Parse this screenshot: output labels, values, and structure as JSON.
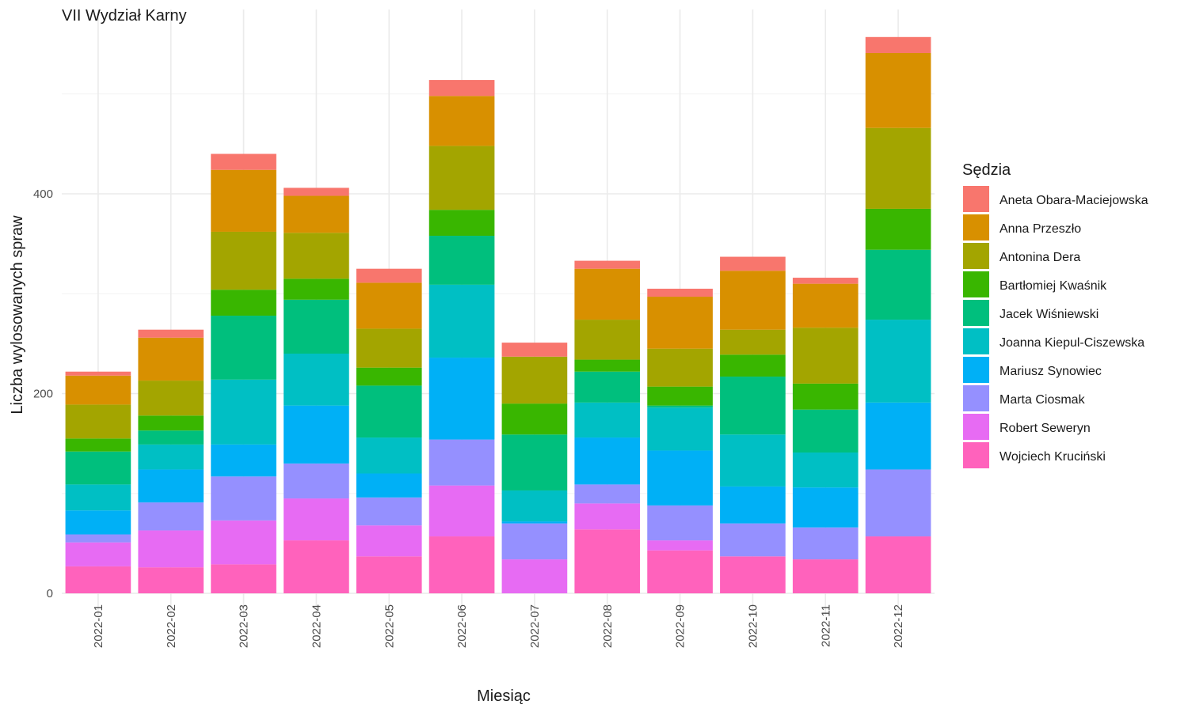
{
  "chart_data": {
    "type": "bar",
    "stacked": true,
    "title": "VII Wydział Karny",
    "xlabel": "Miesiąc",
    "ylabel": "Liczba wylosowanych spraw",
    "legend_title": "Sędzia",
    "legend_position": "right",
    "ylim": [
      0,
      560
    ],
    "y_ticks": [
      0,
      200,
      400
    ],
    "grid": true,
    "categories": [
      "2022-01",
      "2022-02",
      "2022-03",
      "2022-04",
      "2022-05",
      "2022-06",
      "2022-07",
      "2022-08",
      "2022-09",
      "2022-10",
      "2022-11",
      "2022-12"
    ],
    "series": [
      {
        "name": "Aneta Obara-Maciejowska",
        "color": "#F8766D",
        "values": [
          4,
          8,
          16,
          8,
          14,
          16,
          14,
          8,
          8,
          14,
          6,
          16
        ]
      },
      {
        "name": "Anna Przeszło",
        "color": "#D89000",
        "values": [
          29,
          43,
          62,
          37,
          46,
          50,
          0,
          51,
          52,
          59,
          44,
          75
        ]
      },
      {
        "name": "Antonina Dera",
        "color": "#A3A500",
        "values": [
          34,
          35,
          58,
          46,
          39,
          64,
          47,
          40,
          38,
          25,
          56,
          81
        ]
      },
      {
        "name": "Bartłomiej Kwaśnik",
        "color": "#39B600",
        "values": [
          13,
          15,
          26,
          21,
          18,
          26,
          31,
          12,
          19,
          22,
          26,
          41
        ]
      },
      {
        "name": "Jacek Wiśniewski",
        "color": "#00BF7D",
        "values": [
          33,
          14,
          64,
          54,
          52,
          49,
          56,
          31,
          2,
          58,
          43,
          70
        ]
      },
      {
        "name": "Joanna Kiepul-Ciszewska",
        "color": "#00BFC4",
        "values": [
          26,
          25,
          65,
          52,
          36,
          73,
          31,
          35,
          43,
          52,
          35,
          83
        ]
      },
      {
        "name": "Mariusz Synowiec",
        "color": "#00B0F6",
        "values": [
          24,
          33,
          32,
          58,
          24,
          82,
          2,
          47,
          55,
          37,
          40,
          67
        ]
      },
      {
        "name": "Marta Ciosmak",
        "color": "#9590FF",
        "values": [
          8,
          28,
          44,
          35,
          28,
          46,
          36,
          19,
          35,
          33,
          32,
          67
        ]
      },
      {
        "name": "Robert Seweryn",
        "color": "#E76BF3",
        "values": [
          24,
          37,
          44,
          42,
          31,
          51,
          34,
          26,
          10,
          0,
          0,
          0
        ]
      },
      {
        "name": "Wojciech Kruciński",
        "color": "#FF62BC",
        "values": [
          27,
          26,
          29,
          53,
          37,
          57,
          0,
          64,
          43,
          37,
          34,
          57
        ]
      }
    ]
  }
}
